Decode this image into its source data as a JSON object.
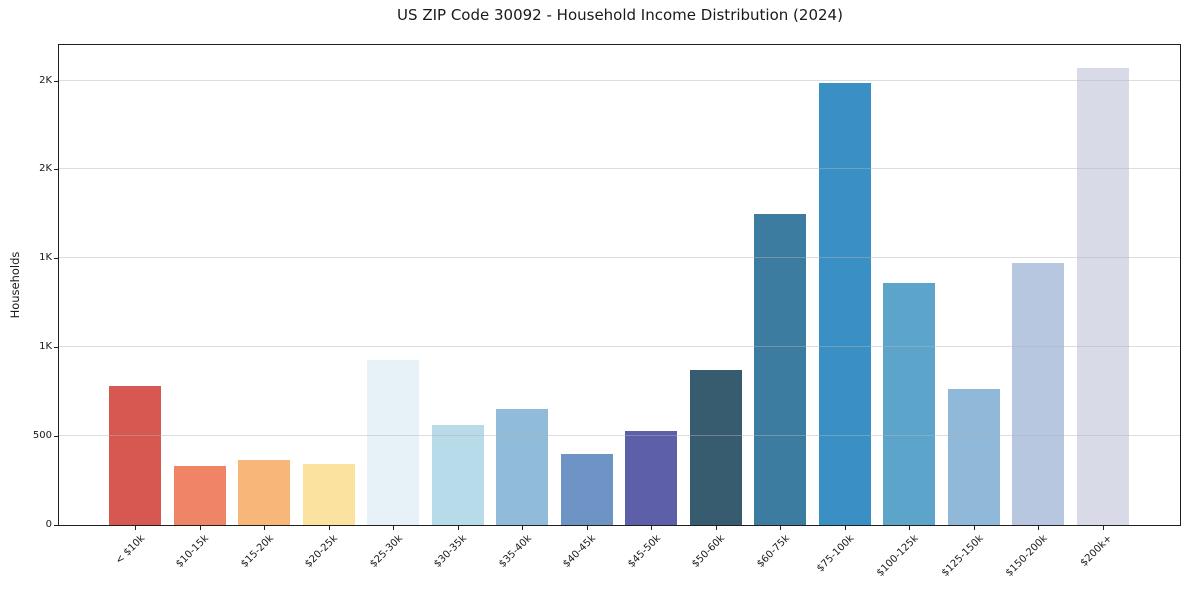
{
  "title": "US ZIP Code 30092 - Household Income Distribution (2024)",
  "chart_data": {
    "type": "bar",
    "title": "US ZIP Code 30092 - Household Income Distribution (2024)",
    "xlabel": "",
    "ylabel": "Households",
    "ylim": [
      0,
      2700
    ],
    "grid": "horizontal",
    "legend": "none",
    "categories": [
      "< $10k",
      "$10-15k",
      "$15-20k",
      "$20-25k",
      "$25-30k",
      "$30-35k",
      "$35-40k",
      "$40-45k",
      "$45-50k",
      "$50-60k",
      "$60-75k",
      "$75-100k",
      "$100-125k",
      "$125-150k",
      "$150-200k",
      "$200k+"
    ],
    "values": [
      780,
      330,
      365,
      345,
      930,
      560,
      650,
      400,
      530,
      870,
      1750,
      2485,
      1360,
      765,
      1475,
      2570
    ],
    "bar_colors": [
      "#d65851",
      "#ef8466",
      "#f8b678",
      "#fbe39f",
      "#e7f2f8",
      "#b7dbe9",
      "#90bcd9",
      "#6d94c5",
      "#5d60a9",
      "#375b6f",
      "#3b7ca0",
      "#3a90c4",
      "#5ca4ca",
      "#90b8d8",
      "#b8c7e0",
      "#d8dae8"
    ],
    "yticks": [
      {
        "value": 0,
        "label": "0"
      },
      {
        "value": 500,
        "label": "500"
      },
      {
        "value": 1000,
        "label": "1K"
      },
      {
        "value": 1500,
        "label": "1K"
      },
      {
        "value": 2000,
        "label": "2K"
      },
      {
        "value": 2500,
        "label": "2K"
      }
    ],
    "text_color": "#1a1a1a",
    "grid_color": "#d9d9d9",
    "background_color": "#ffffff"
  }
}
